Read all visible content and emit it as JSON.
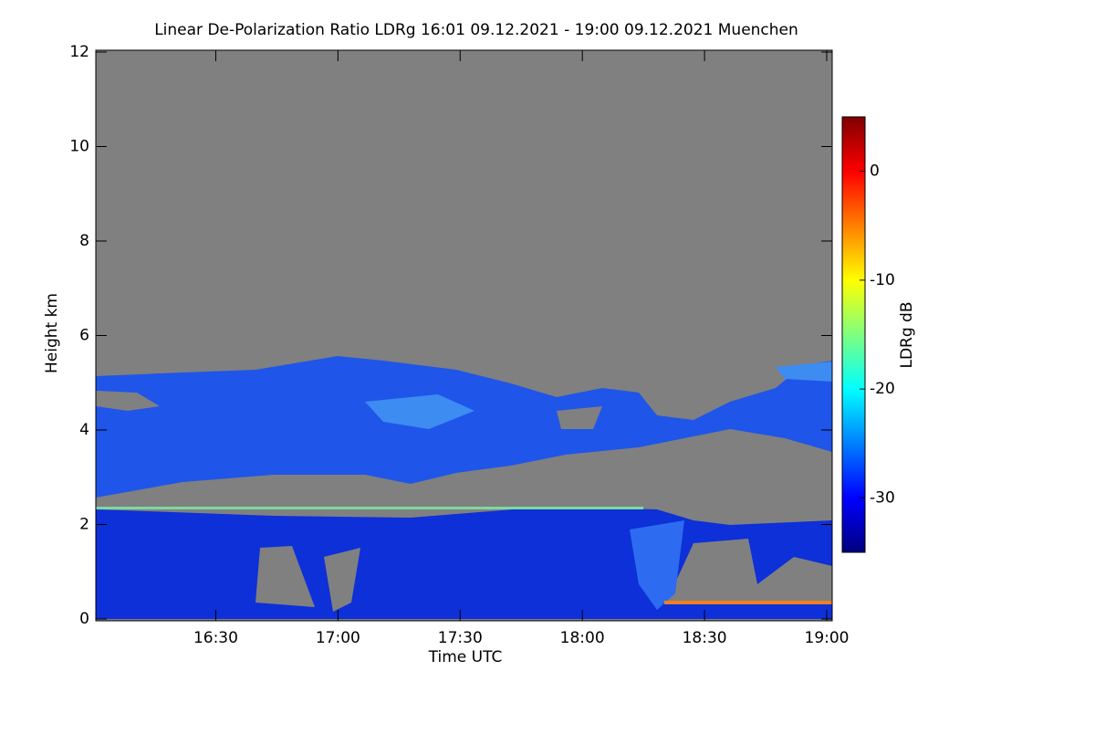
{
  "chart_data": {
    "type": "heatmap",
    "title": "Linear De-Polarization Ratio LDRg   16:01 09.12.2021 - 19:00 09.12.2021 Muenchen",
    "x_label": "Time UTC",
    "y_label": "Height km",
    "xlim": [
      961,
      1140
    ],
    "xticks": [
      {
        "value": 990,
        "label": "16:30"
      },
      {
        "value": 1020,
        "label": "17:00"
      },
      {
        "value": 1050,
        "label": "17:30"
      },
      {
        "value": 1080,
        "label": "18:00"
      },
      {
        "value": 1110,
        "label": "18:30"
      },
      {
        "value": 1140,
        "label": "19:00"
      }
    ],
    "ylim": [
      0,
      12
    ],
    "yticks": [
      0,
      2,
      4,
      6,
      8,
      10,
      12
    ],
    "colorbar": {
      "label": "LDRg dB",
      "clim": [
        -35,
        5
      ],
      "ticks": [
        0,
        -10,
        -20,
        -30
      ],
      "colormap": [
        "#00007f",
        "#0000ff",
        "#007fff",
        "#00ffff",
        "#7fff7f",
        "#ffff00",
        "#ff7f00",
        "#ff0000",
        "#7f0000"
      ]
    }
  }
}
